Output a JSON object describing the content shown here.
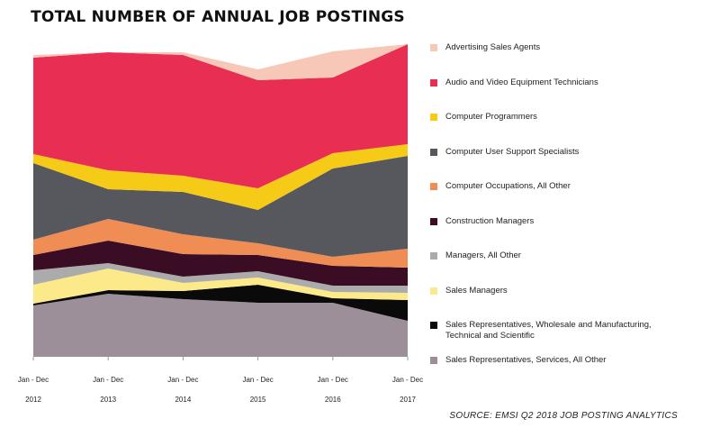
{
  "title": "TOTAL NUMBER OF ANNUAL JOB POSTINGS",
  "source": "SOURCE: EMSI Q2 2018 JOB POSTING ANALYTICS",
  "chart_data": {
    "type": "area",
    "stacked": true,
    "title": "TOTAL NUMBER OF ANNUAL JOB POSTINGS",
    "xlabel": "",
    "ylabel": "",
    "x": [
      "2012",
      "2013",
      "2014",
      "2015",
      "2016",
      "2017"
    ],
    "x_tick_labels": [
      {
        "period": "Jan - Dec",
        "year": "2012"
      },
      {
        "period": "Jan - Dec",
        "year": "2013"
      },
      {
        "period": "Jan - Dec",
        "year": "2014"
      },
      {
        "period": "Jan - Dec",
        "year": "2015"
      },
      {
        "period": "Jan - Dec",
        "year": "2016"
      },
      {
        "period": "Jan - Dec",
        "year": "2017"
      }
    ],
    "y_axis_visible": false,
    "grid": false,
    "legend_position": "right",
    "series": [
      {
        "name": "Sales Representatives, Services, All Other",
        "color": "#9d8f99",
        "values": [
          57,
          70,
          64,
          60,
          60,
          40
        ]
      },
      {
        "name": "Sales Representatives, Wholesale and Manufacturing, Technical and Scientific",
        "color": "#0a0a0a",
        "values": [
          2,
          4,
          9,
          20,
          5,
          23
        ]
      },
      {
        "name": "Sales Managers",
        "color": "#fbe98a",
        "values": [
          21,
          24,
          9,
          8,
          7,
          8
        ]
      },
      {
        "name": "Managers, All Other",
        "color": "#ababab",
        "values": [
          16,
          6,
          7,
          7,
          7,
          8
        ]
      },
      {
        "name": "Construction Managers",
        "color": "#3a0d25",
        "values": [
          17,
          25,
          25,
          18,
          22,
          20
        ]
      },
      {
        "name": "Computer Occupations, All Other",
        "color": "#ef8d55",
        "values": [
          17,
          24,
          22,
          13,
          10,
          21
        ]
      },
      {
        "name": "Computer User Support Specialists",
        "color": "#57585d",
        "values": [
          85,
          33,
          47,
          37,
          98,
          103
        ]
      },
      {
        "name": "Computer Programmers",
        "color": "#f5cb17",
        "values": [
          10,
          21,
          18,
          24,
          17,
          13
        ]
      },
      {
        "name": "Audio and Video Equipment Technicians",
        "color": "#e92e54",
        "values": [
          107,
          131,
          134,
          120,
          84,
          111
        ]
      },
      {
        "name": "Advertising Sales Agents",
        "color": "#f7c8b8",
        "values": [
          3,
          0,
          3,
          12,
          29,
          0
        ]
      }
    ]
  }
}
